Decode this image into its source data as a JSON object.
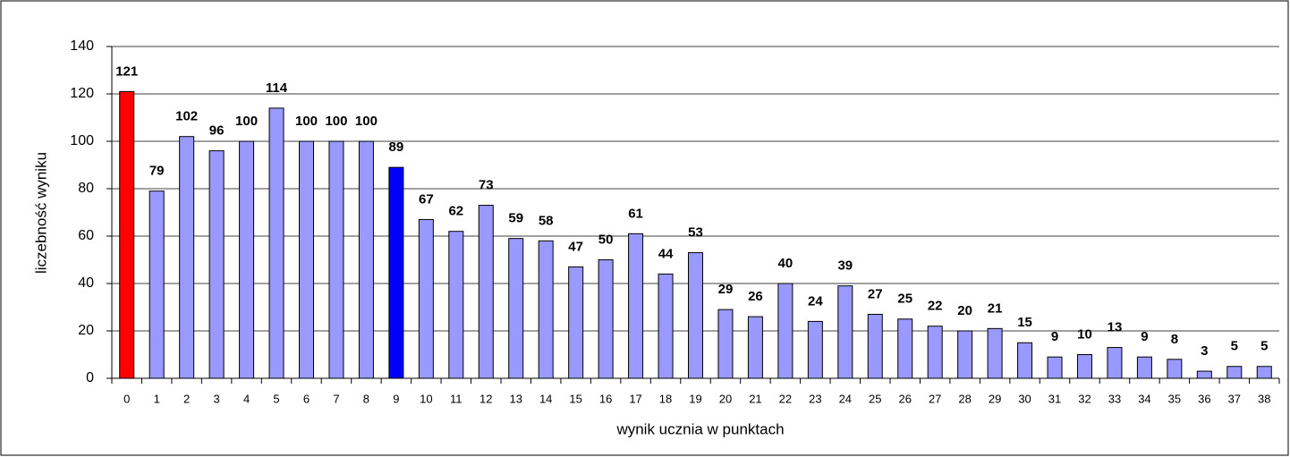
{
  "chart_data": {
    "type": "bar",
    "y_label": "liczebność wyniku",
    "x_label": "wynik ucznia w punktach",
    "categories": [
      "0",
      "1",
      "2",
      "3",
      "4",
      "5",
      "6",
      "7",
      "8",
      "9",
      "10",
      "11",
      "12",
      "13",
      "14",
      "15",
      "16",
      "17",
      "18",
      "19",
      "20",
      "21",
      "22",
      "23",
      "24",
      "25",
      "26",
      "27",
      "28",
      "29",
      "30",
      "31",
      "32",
      "33",
      "34",
      "35",
      "36",
      "37",
      "38"
    ],
    "values": [
      121,
      79,
      102,
      96,
      100,
      114,
      100,
      100,
      100,
      89,
      67,
      62,
      73,
      59,
      58,
      47,
      50,
      61,
      44,
      53,
      29,
      26,
      40,
      24,
      39,
      27,
      25,
      22,
      20,
      21,
      15,
      9,
      10,
      13,
      9,
      8,
      3,
      5,
      5
    ],
    "color": "#9999ff",
    "colors": [
      "#ff0000",
      "#9999ff",
      "#9999ff",
      "#9999ff",
      "#9999ff",
      "#9999ff",
      "#9999ff",
      "#9999ff",
      "#9999ff",
      "#0000ff",
      "#9999ff",
      "#9999ff",
      "#9999ff",
      "#9999ff",
      "#9999ff",
      "#9999ff",
      "#9999ff",
      "#9999ff",
      "#9999ff",
      "#9999ff",
      "#9999ff",
      "#9999ff",
      "#9999ff",
      "#9999ff",
      "#9999ff",
      "#9999ff",
      "#9999ff",
      "#9999ff",
      "#9999ff",
      "#9999ff",
      "#9999ff",
      "#9999ff",
      "#9999ff",
      "#9999ff",
      "#9999ff",
      "#9999ff",
      "#9999ff",
      "#9999ff",
      "#9999ff"
    ],
    "ylim": [
      0,
      140
    ],
    "yticks": [
      0,
      20,
      40,
      60,
      80,
      100,
      120,
      140
    ],
    "grid": true
  }
}
